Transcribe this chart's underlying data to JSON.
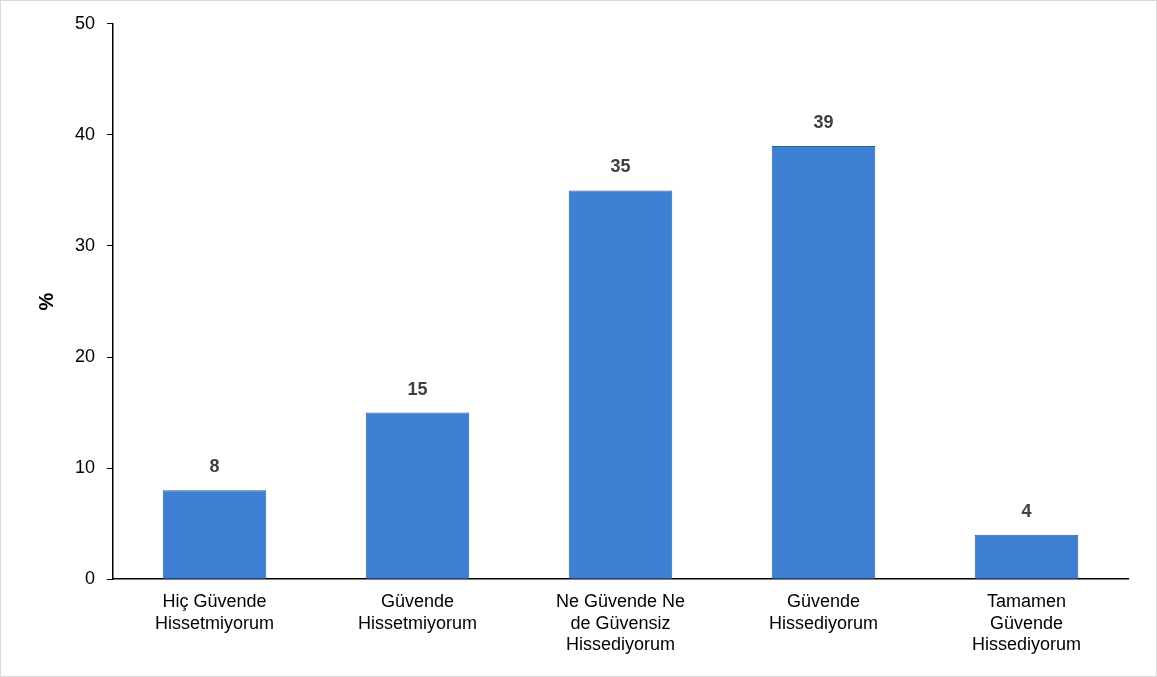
{
  "chart_data": {
    "type": "bar",
    "categories": [
      "Hiç Güvende Hissetmiyorum",
      "Güvende Hissetmiyorum",
      "Ne Güvende Ne de Güvensiz Hissediyorum",
      "Güvende Hissediyorum",
      "Tamamen Güvende Hissediyorum"
    ],
    "values": [
      8,
      15,
      35,
      39,
      4
    ],
    "color": "#3d7fd2",
    "ylabel": "%",
    "ylim": [
      0,
      50
    ],
    "yticks": [
      0,
      10,
      20,
      30,
      40,
      50
    ],
    "grid": false,
    "legend": false,
    "data_labels": true
  }
}
